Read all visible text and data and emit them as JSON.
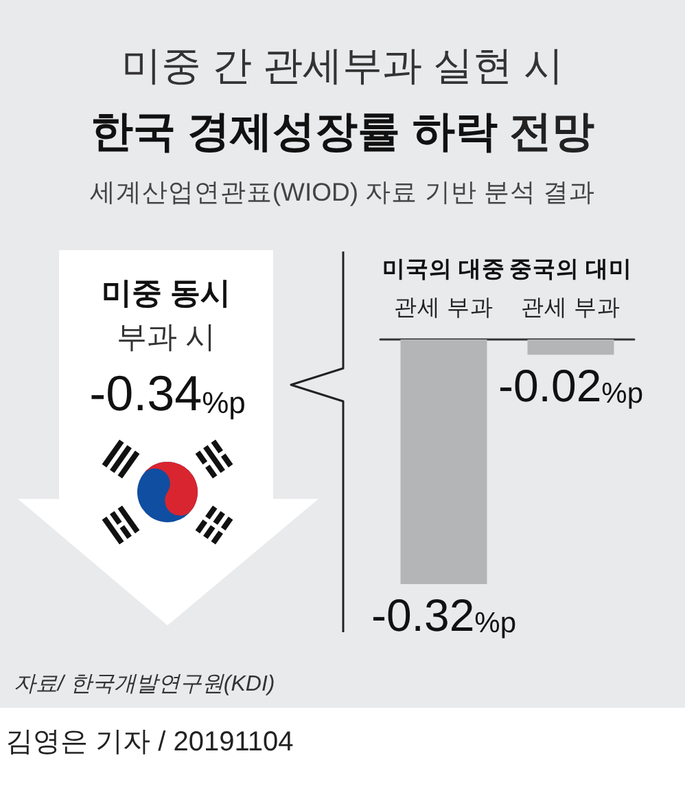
{
  "chart_data": {
    "type": "bar",
    "title": "미중 간 관세부과 실현 시\n한국 경제성장률 하락 전망",
    "subtitle": "세계산업연관표(WIOD) 자료 기반 분석 결과",
    "categories": [
      "미국의 대중\n관세 부과",
      "중국의 대미\n관세 부과"
    ],
    "values": [
      -0.32,
      -0.02
    ],
    "color": "#b4b5b7",
    "value_labels": [
      "-0.32%p",
      "-0.02%p"
    ],
    "annotations": [
      "미중 동시\n부과 시",
      "-0.34%p",
      "자료/ 한국개발연구원(KDI)",
      "김영은 기자 / 20191104"
    ]
  }
}
